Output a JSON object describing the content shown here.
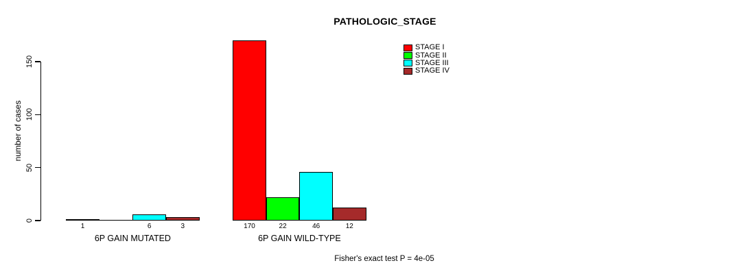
{
  "chart_data": {
    "type": "bar",
    "title": "PATHOLOGIC_STAGE",
    "ylabel": "number of cases",
    "xlabel": "",
    "annotation": "Fisher's exact test P = 4e-05",
    "yticks": [
      0,
      50,
      100,
      150
    ],
    "ylim": [
      0,
      170
    ],
    "grid": false,
    "legend_position": "top-right",
    "categories": [
      "6P GAIN MUTATED",
      "6P GAIN WILD-TYPE"
    ],
    "series": [
      {
        "name": "STAGE I",
        "color": "#ff0000",
        "values": [
          1,
          170
        ]
      },
      {
        "name": "STAGE II",
        "color": "#00ff00",
        "values": [
          0,
          22
        ]
      },
      {
        "name": "STAGE III",
        "color": "#00ffff",
        "values": [
          6,
          46
        ]
      },
      {
        "name": "STAGE IV",
        "color": "#a52a2a",
        "values": [
          3,
          12
        ]
      }
    ],
    "bar_value_labels": [
      [
        "1",
        "",
        "6",
        "3"
      ],
      [
        "170",
        "22",
        "46",
        "12"
      ]
    ],
    "bar_border_color": "#000000",
    "text_color": "#000000",
    "background_color": "#ffffff"
  }
}
